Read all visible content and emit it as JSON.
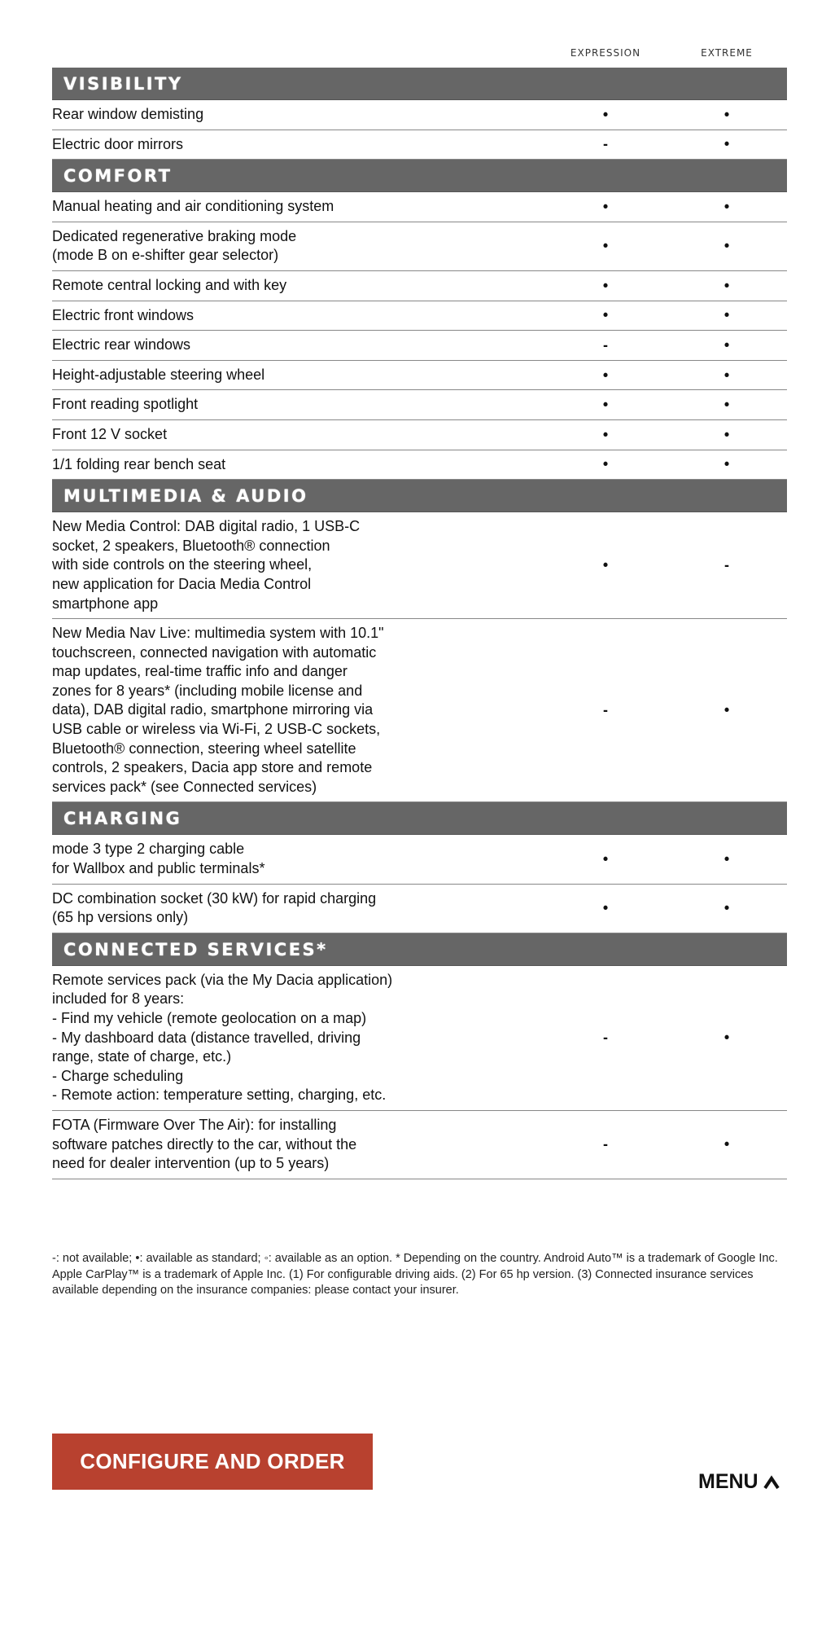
{
  "columns": [
    "EXPRESSION",
    "EXTREME"
  ],
  "sections": [
    {
      "title": "VISIBILITY",
      "rows": [
        {
          "label": "Rear window demisting",
          "values": [
            "•",
            "•"
          ]
        },
        {
          "label": "Electric door mirrors",
          "values": [
            "-",
            "•"
          ]
        }
      ]
    },
    {
      "title": "COMFORT",
      "rows": [
        {
          "label": "Manual heating and air conditioning system",
          "values": [
            "•",
            "•"
          ]
        },
        {
          "label": "Dedicated regenerative braking mode\n(mode B on e-shifter gear selector)",
          "values": [
            "•",
            "•"
          ]
        },
        {
          "label": "Remote central locking and with key",
          "values": [
            "•",
            "•"
          ]
        },
        {
          "label": "Electric front windows",
          "values": [
            "•",
            "•"
          ]
        },
        {
          "label": "Electric rear windows",
          "values": [
            "-",
            "•"
          ]
        },
        {
          "label": "Height-adjustable steering wheel",
          "values": [
            "•",
            "•"
          ]
        },
        {
          "label": "Front reading spotlight",
          "values": [
            "•",
            "•"
          ]
        },
        {
          "label": "Front 12 V socket",
          "values": [
            "•",
            "•"
          ]
        },
        {
          "label": "1/1 folding rear bench seat",
          "values": [
            "•",
            "•"
          ]
        }
      ]
    },
    {
      "title": "MULTIMEDIA & AUDIO",
      "rows": [
        {
          "label": "New Media Control: DAB digital radio, 1 USB-C\nsocket, 2 speakers, Bluetooth® connection\nwith side controls on the steering wheel,\nnew application for Dacia Media Control\nsmartphone app",
          "values": [
            "•",
            "-"
          ]
        },
        {
          "label": "New Media Nav Live: multimedia system with 10.1\"\ntouchscreen, connected navigation with automatic\nmap updates, real-time traffic info and danger\nzones for 8 years* (including mobile license and\ndata), DAB digital radio, smartphone mirroring via\nUSB cable or wireless via Wi-Fi, 2 USB-C sockets,\nBluetooth® connection, steering wheel satellite\ncontrols, 2 speakers, Dacia app store and remote\nservices pack* (see Connected services)",
          "values": [
            "-",
            "•"
          ]
        }
      ]
    },
    {
      "title": "CHARGING",
      "rows": [
        {
          "label": "mode 3 type 2 charging cable\nfor Wallbox and public terminals*",
          "values": [
            "•",
            "•"
          ]
        },
        {
          "label": "DC combination socket (30 kW) for rapid charging\n(65 hp versions only)",
          "values": [
            "•",
            "•"
          ]
        }
      ]
    },
    {
      "title": "CONNECTED SERVICES*",
      "rows": [
        {
          "label": "Remote services pack (via the My Dacia application)\nincluded for 8 years:\n- Find my vehicle (remote geolocation on a map)\n- My dashboard data (distance travelled, driving\nrange, state of charge, etc.)\n- Charge scheduling\n- Remote action: temperature setting, charging, etc.",
          "values": [
            "-",
            "•"
          ]
        },
        {
          "label": "FOTA (Firmware Over The Air): for installing\nsoftware patches directly to the car, without the\nneed for dealer intervention (up to 5 years)",
          "values": [
            "-",
            "•"
          ]
        }
      ]
    }
  ],
  "footnote": "-: not available; •: available as standard; ◦: available as an option. * Depending on the country. Android Auto™ is a trademark of Google Inc. Apple CarPlay™ is a trademark of Apple Inc. (1) For configurable driving aids. (2) For 65 hp version. (3) Connected insurance services available depending on the insurance companies: please contact your insurer.",
  "cta_label": "CONFIGURE AND ORDER",
  "menu_label": "MENU",
  "colors": {
    "section_bar": "#666666",
    "cta": "#b8412f"
  }
}
